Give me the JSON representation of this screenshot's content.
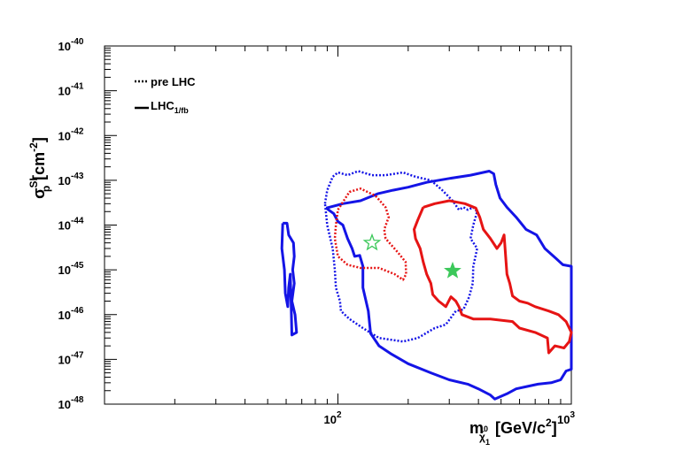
{
  "chart_data": {
    "type": "scatter",
    "title": "",
    "xlabel": {
      "base": "m",
      "sub": "χ̃",
      "sub_sup": "0",
      "sub_sub": "1",
      "unit_pre": "[GeV/c",
      "unit_sup": "2",
      "unit_post": "]"
    },
    "ylabel": {
      "base": "σ",
      "sup": "SI",
      "sub": "p",
      "unit_pre": "[cm",
      "unit_sup": "-2",
      "unit_post": "]"
    },
    "x_scale": "log",
    "y_scale": "log",
    "xlim": [
      10,
      1000
    ],
    "ylim": [
      1e-48,
      1e-40
    ],
    "x_ticks": [
      {
        "value": 100,
        "base": "10",
        "exp": "2"
      },
      {
        "value": 1000,
        "base": "10",
        "exp": "3"
      }
    ],
    "y_ticks": [
      {
        "value": 1e-48,
        "base": "10",
        "exp": "-48"
      },
      {
        "value": 1e-47,
        "base": "10",
        "exp": "-47"
      },
      {
        "value": 1e-46,
        "base": "10",
        "exp": "-46"
      },
      {
        "value": 1e-45,
        "base": "10",
        "exp": "-45"
      },
      {
        "value": 1e-44,
        "base": "10",
        "exp": "-44"
      },
      {
        "value": 1e-43,
        "base": "10",
        "exp": "-43"
      },
      {
        "value": 1e-42,
        "base": "10",
        "exp": "-42"
      },
      {
        "value": 1e-41,
        "base": "10",
        "exp": "-41"
      },
      {
        "value": 1e-40,
        "base": "10",
        "exp": "-40"
      }
    ],
    "grid": false,
    "legend": {
      "position": "top-left",
      "entries": [
        {
          "style": "dotted",
          "text": "pre LHC"
        },
        {
          "style": "solid",
          "text": "LHC",
          "sub": "1/fb"
        }
      ]
    },
    "colors": {
      "blue": "#1414e6",
      "red": "#e61414",
      "green": "#3cc85a"
    },
    "series": [
      {
        "color": "blue",
        "style": "solid",
        "points": [
          [
            58,
            1.1e-44
          ],
          [
            60.5,
            1.1e-44
          ],
          [
            61.5,
            6e-45
          ],
          [
            64.5,
            4e-45
          ],
          [
            65,
            2e-45
          ],
          [
            64,
            1e-45
          ],
          [
            65,
            5e-46
          ],
          [
            63.5,
            2e-46
          ],
          [
            65.5,
            1e-46
          ],
          [
            66.5,
            4e-47
          ],
          [
            63.5,
            3.5e-47
          ],
          [
            63,
            2e-46
          ],
          [
            62.5,
            8e-46
          ],
          [
            61.5,
            4e-46
          ],
          [
            61,
            1.5e-46
          ],
          [
            59.5,
            3e-46
          ],
          [
            59,
            1e-45
          ],
          [
            57.5,
            3e-45
          ],
          [
            58,
            1.1e-44
          ]
        ]
      },
      {
        "color": "blue",
        "style": "solid",
        "points": [
          [
            89,
            2.4e-44
          ],
          [
            105,
            3e-44
          ],
          [
            125,
            3.5e-44
          ],
          [
            148,
            5e-44
          ],
          [
            172,
            6e-44
          ],
          [
            200,
            7e-44
          ],
          [
            240,
            9e-44
          ],
          [
            300,
            1.1e-43
          ],
          [
            370,
            1.3e-43
          ],
          [
            445,
            1.6e-43
          ],
          [
            465,
            1.4e-43
          ],
          [
            475,
            8e-44
          ],
          [
            495,
            4e-44
          ],
          [
            530,
            2.5e-44
          ],
          [
            580,
            1.5e-44
          ],
          [
            640,
            8e-45
          ],
          [
            710,
            6e-45
          ],
          [
            770,
            3e-45
          ],
          [
            860,
            1.8e-45
          ],
          [
            920,
            1.3e-45
          ],
          [
            1000,
            1.2e-45
          ],
          [
            1000,
            6e-48
          ],
          [
            950,
            5.5e-48
          ],
          [
            900,
            3.5e-48
          ],
          [
            820,
            3e-48
          ],
          [
            720,
            2.8e-48
          ],
          [
            650,
            2.5e-48
          ],
          [
            580,
            2.2e-48
          ],
          [
            530,
            1.7e-48
          ],
          [
            470,
            1.3e-48
          ],
          [
            450,
            1.6e-48
          ],
          [
            400,
            2.2e-48
          ],
          [
            360,
            2.8e-48
          ],
          [
            300,
            3.5e-48
          ],
          [
            250,
            5e-48
          ],
          [
            200,
            8e-48
          ],
          [
            170,
            1.3e-47
          ],
          [
            150,
            2e-47
          ],
          [
            138,
            3.8e-47
          ],
          [
            135,
            1.2e-46
          ],
          [
            128,
            4e-46
          ],
          [
            128,
            1.2e-45
          ],
          [
            124,
            2.1e-45
          ],
          [
            118,
            2e-45
          ],
          [
            115,
            3e-45
          ],
          [
            110,
            5e-45
          ],
          [
            105,
            1e-44
          ],
          [
            100,
            1.2e-44
          ],
          [
            96,
            1.8e-44
          ],
          [
            89,
            2.4e-44
          ]
        ]
      },
      {
        "color": "blue",
        "style": "dotted",
        "points": [
          [
            88,
            3e-44
          ],
          [
            90,
            6e-44
          ],
          [
            95,
            1.2e-43
          ],
          [
            100,
            1.5e-43
          ],
          [
            110,
            1.3e-43
          ],
          [
            122,
            1.6e-43
          ],
          [
            140,
            1.3e-43
          ],
          [
            160,
            1.3e-43
          ],
          [
            190,
            1.5e-43
          ],
          [
            215,
            1.2e-43
          ],
          [
            250,
            1e-43
          ],
          [
            280,
            6e-44
          ],
          [
            310,
            3.5e-44
          ],
          [
            330,
            2.2e-44
          ],
          [
            345,
            2.5e-44
          ],
          [
            360,
            2.2e-44
          ],
          [
            380,
            2.5e-44
          ],
          [
            395,
            2e-44
          ],
          [
            380,
            1e-44
          ],
          [
            370,
            5e-45
          ],
          [
            395,
            3e-45
          ],
          [
            380,
            1.2e-45
          ],
          [
            378,
            5e-46
          ],
          [
            365,
            2.5e-46
          ],
          [
            345,
            1.3e-46
          ],
          [
            320,
            1.2e-46
          ],
          [
            290,
            6e-47
          ],
          [
            260,
            5e-47
          ],
          [
            220,
            3e-47
          ],
          [
            190,
            2.5e-47
          ],
          [
            150,
            3e-47
          ],
          [
            128,
            5e-47
          ],
          [
            112,
            8e-47
          ],
          [
            103,
            1.2e-46
          ],
          [
            102,
            2e-46
          ],
          [
            98,
            4e-46
          ],
          [
            97,
            1e-45
          ],
          [
            95,
            3e-45
          ],
          [
            92,
            6e-45
          ],
          [
            90,
            1e-44
          ],
          [
            88,
            3e-44
          ]
        ]
      },
      {
        "color": "red",
        "style": "dotted",
        "points": [
          [
            100,
            2.2e-44
          ],
          [
            112,
            5.5e-44
          ],
          [
            125,
            6.5e-44
          ],
          [
            145,
            4.5e-44
          ],
          [
            160,
            2.5e-44
          ],
          [
            165,
            1.5e-44
          ],
          [
            158,
            8e-45
          ],
          [
            160,
            5e-45
          ],
          [
            180,
            2.5e-45
          ],
          [
            195,
            1.5e-45
          ],
          [
            196,
            8e-46
          ],
          [
            190,
            6e-46
          ],
          [
            175,
            8e-46
          ],
          [
            150,
            1.1e-45
          ],
          [
            125,
            1.1e-45
          ],
          [
            110,
            1.3e-45
          ],
          [
            100,
            2e-45
          ],
          [
            97,
            5e-45
          ],
          [
            98,
            1e-44
          ],
          [
            100,
            2.2e-44
          ]
        ]
      },
      {
        "color": "red",
        "style": "solid",
        "points": [
          [
            232,
            2.5e-44
          ],
          [
            260,
            3e-44
          ],
          [
            300,
            3.5e-44
          ],
          [
            350,
            3e-44
          ],
          [
            390,
            2.4e-44
          ],
          [
            405,
            1.5e-44
          ],
          [
            420,
            8e-45
          ],
          [
            450,
            5e-45
          ],
          [
            480,
            3e-45
          ],
          [
            500,
            4e-45
          ],
          [
            515,
            6e-45
          ],
          [
            525,
            1.5e-45
          ],
          [
            530,
            8e-46
          ],
          [
            545,
            5e-46
          ],
          [
            560,
            2.6e-46
          ],
          [
            600,
            2e-46
          ],
          [
            650,
            1.8e-46
          ],
          [
            700,
            1.5e-46
          ],
          [
            800,
            1.2e-46
          ],
          [
            880,
            1e-46
          ],
          [
            950,
            7e-47
          ],
          [
            1000,
            4e-47
          ],
          [
            980,
            2.5e-47
          ],
          [
            930,
            1.8e-47
          ],
          [
            850,
            2e-47
          ],
          [
            800,
            1.4e-47
          ],
          [
            790,
            3e-47
          ],
          [
            700,
            4e-47
          ],
          [
            600,
            5e-47
          ],
          [
            560,
            7e-47
          ],
          [
            450,
            8e-47
          ],
          [
            380,
            8e-47
          ],
          [
            340,
            1e-46
          ],
          [
            330,
            1.5e-46
          ],
          [
            320,
            2e-46
          ],
          [
            305,
            2.5e-46
          ],
          [
            290,
            1.5e-46
          ],
          [
            270,
            2e-46
          ],
          [
            255,
            2.8e-46
          ],
          [
            250,
            5e-46
          ],
          [
            240,
            8e-46
          ],
          [
            232,
            1.5e-45
          ],
          [
            225,
            3e-45
          ],
          [
            215,
            5e-45
          ],
          [
            212,
            8e-45
          ],
          [
            220,
            1.3e-44
          ],
          [
            232,
            2.5e-44
          ]
        ]
      }
    ],
    "markers": [
      {
        "type": "star-open",
        "x": 140,
        "y": 4e-45,
        "color": "green"
      },
      {
        "type": "star-filled",
        "x": 310,
        "y": 9.5e-46,
        "color": "green"
      }
    ]
  }
}
